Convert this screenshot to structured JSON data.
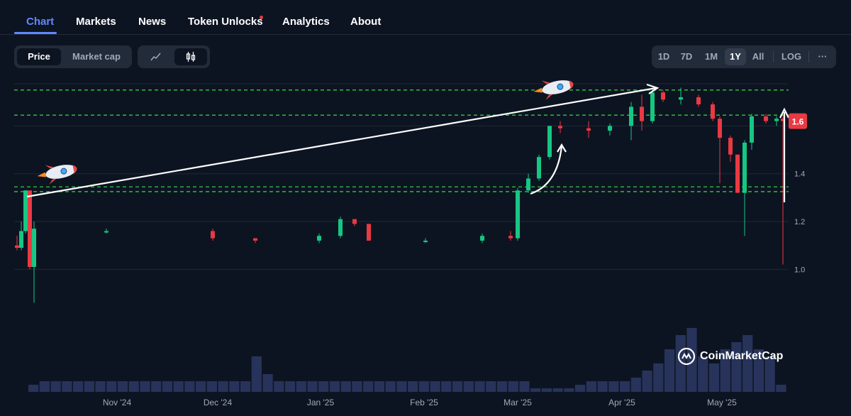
{
  "nav": {
    "tabs": [
      "Chart",
      "Markets",
      "News",
      "Token Unlocks",
      "Analytics",
      "About"
    ],
    "active": "Chart"
  },
  "toolbar": {
    "metric_options": [
      "Price",
      "Market cap"
    ],
    "metric_selected": "Price",
    "chart_type_icons": [
      "line-chart-icon",
      "candlestick-icon"
    ],
    "chart_type_selected": "candlestick-icon",
    "ranges": [
      "1D",
      "7D",
      "1M",
      "1Y",
      "All",
      "LOG"
    ],
    "range_selected": "1Y",
    "more_label": "···"
  },
  "chart_data": {
    "type": "candlestick",
    "x_ticks": [
      "Nov '24",
      "Dec '24",
      "Jan '25",
      "Feb '25",
      "Mar '25",
      "Apr '25",
      "May '25"
    ],
    "y_ticks": [
      "1.0",
      "1.2",
      "1.4",
      "1.6"
    ],
    "ylim": [
      0.82,
      1.8
    ],
    "current_price_label": "1.6",
    "current_price": 1.62,
    "horizontal_levels": [
      1.75,
      1.645,
      1.345,
      1.325
    ],
    "candles": [
      {
        "t": "Oct '24",
        "o": 1.1,
        "h": 1.14,
        "l": 1.08,
        "c": 1.09
      },
      {
        "t": "Oct '24",
        "o": 1.09,
        "h": 1.2,
        "l": 1.08,
        "c": 1.16
      },
      {
        "t": "Oct '24",
        "o": 1.16,
        "h": 1.33,
        "l": 1.15,
        "c": 1.33
      },
      {
        "t": "Oct '24",
        "o": 1.33,
        "h": 1.33,
        "l": 1.0,
        "c": 1.01
      },
      {
        "t": "Oct '24",
        "o": 1.01,
        "h": 1.2,
        "l": 0.86,
        "c": 1.17
      },
      {
        "t": "Nov '24",
        "o": 1.16,
        "h": 1.17,
        "l": 1.15,
        "c": 1.16
      },
      {
        "t": "Dec '24",
        "o": 1.16,
        "h": 1.17,
        "l": 1.12,
        "c": 1.13
      },
      {
        "t": "Dec '24",
        "o": 1.13,
        "h": 1.13,
        "l": 1.11,
        "c": 1.12
      },
      {
        "t": "Jan '25",
        "o": 1.12,
        "h": 1.15,
        "l": 1.11,
        "c": 1.14
      },
      {
        "t": "Jan '25",
        "o": 1.14,
        "h": 1.22,
        "l": 1.13,
        "c": 1.21
      },
      {
        "t": "Jan '25",
        "o": 1.21,
        "h": 1.21,
        "l": 1.18,
        "c": 1.19
      },
      {
        "t": "Jan '25",
        "o": 1.19,
        "h": 1.19,
        "l": 1.12,
        "c": 1.12
      },
      {
        "t": "Feb '25",
        "o": 1.12,
        "h": 1.13,
        "l": 1.11,
        "c": 1.12
      },
      {
        "t": "Feb '25",
        "o": 1.12,
        "h": 1.15,
        "l": 1.11,
        "c": 1.14
      },
      {
        "t": "Feb '25",
        "o": 1.14,
        "h": 1.16,
        "l": 1.12,
        "c": 1.13
      },
      {
        "t": "Mar '25",
        "o": 1.13,
        "h": 1.34,
        "l": 1.12,
        "c": 1.33
      },
      {
        "t": "Mar '25",
        "o": 1.33,
        "h": 1.4,
        "l": 1.32,
        "c": 1.38
      },
      {
        "t": "Mar '25",
        "o": 1.38,
        "h": 1.48,
        "l": 1.37,
        "c": 1.47
      },
      {
        "t": "Mar '25",
        "o": 1.47,
        "h": 1.6,
        "l": 1.46,
        "c": 1.6
      },
      {
        "t": "Mar '25",
        "o": 1.6,
        "h": 1.62,
        "l": 1.57,
        "c": 1.59
      },
      {
        "t": "Mar '25",
        "o": 1.59,
        "h": 1.62,
        "l": 1.55,
        "c": 1.58
      },
      {
        "t": "Mar '25",
        "o": 1.58,
        "h": 1.61,
        "l": 1.56,
        "c": 1.6
      },
      {
        "t": "Apr '25",
        "o": 1.6,
        "h": 1.7,
        "l": 1.54,
        "c": 1.68
      },
      {
        "t": "Apr '25",
        "o": 1.68,
        "h": 1.73,
        "l": 1.58,
        "c": 1.62
      },
      {
        "t": "Apr '25",
        "o": 1.62,
        "h": 1.76,
        "l": 1.61,
        "c": 1.74
      },
      {
        "t": "Apr '25",
        "o": 1.74,
        "h": 1.75,
        "l": 1.7,
        "c": 1.71
      },
      {
        "t": "Apr '25",
        "o": 1.71,
        "h": 1.76,
        "l": 1.69,
        "c": 1.72
      },
      {
        "t": "Apr '25",
        "o": 1.72,
        "h": 1.73,
        "l": 1.68,
        "c": 1.69
      },
      {
        "t": "Apr '25",
        "o": 1.69,
        "h": 1.7,
        "l": 1.62,
        "c": 1.63
      },
      {
        "t": "May '25",
        "o": 1.63,
        "h": 1.64,
        "l": 1.36,
        "c": 1.55
      },
      {
        "t": "May '25",
        "o": 1.55,
        "h": 1.56,
        "l": 1.45,
        "c": 1.48
      },
      {
        "t": "May '25",
        "o": 1.48,
        "h": 1.48,
        "l": 1.32,
        "c": 1.32
      },
      {
        "t": "May '25",
        "o": 1.32,
        "h": 1.54,
        "l": 1.14,
        "c": 1.53
      },
      {
        "t": "May '25",
        "o": 1.53,
        "h": 1.65,
        "l": 1.5,
        "c": 1.64
      },
      {
        "t": "May '25",
        "o": 1.64,
        "h": 1.65,
        "l": 1.61,
        "c": 1.62
      },
      {
        "t": "May '25",
        "o": 1.62,
        "h": 1.64,
        "l": 1.6,
        "c": 1.63
      },
      {
        "t": "May '25",
        "o": 1.63,
        "h": 1.64,
        "l": 1.02,
        "c": 1.62
      }
    ],
    "volume": [
      2,
      3,
      3,
      3,
      3,
      3,
      3,
      3,
      3,
      3,
      3,
      3,
      3,
      3,
      3,
      3,
      3,
      3,
      3,
      3,
      10,
      5,
      3,
      3,
      3,
      3,
      3,
      3,
      3,
      3,
      3,
      3,
      3,
      3,
      3,
      3,
      3,
      3,
      3,
      3,
      3,
      3,
      3,
      3,
      3,
      1,
      1,
      1,
      1,
      2,
      3,
      3,
      3,
      3,
      4,
      6,
      8,
      12,
      16,
      18,
      10,
      8,
      12,
      14,
      16,
      12,
      10,
      2
    ],
    "colors": {
      "up": "#16c784",
      "down": "#ea3943",
      "level": "#2ecc40",
      "volume": "#2a3660",
      "grid": "#1f2735",
      "axis_text": "#a1a7bb"
    }
  },
  "brand": {
    "watermark": "CoinMarketCap"
  }
}
